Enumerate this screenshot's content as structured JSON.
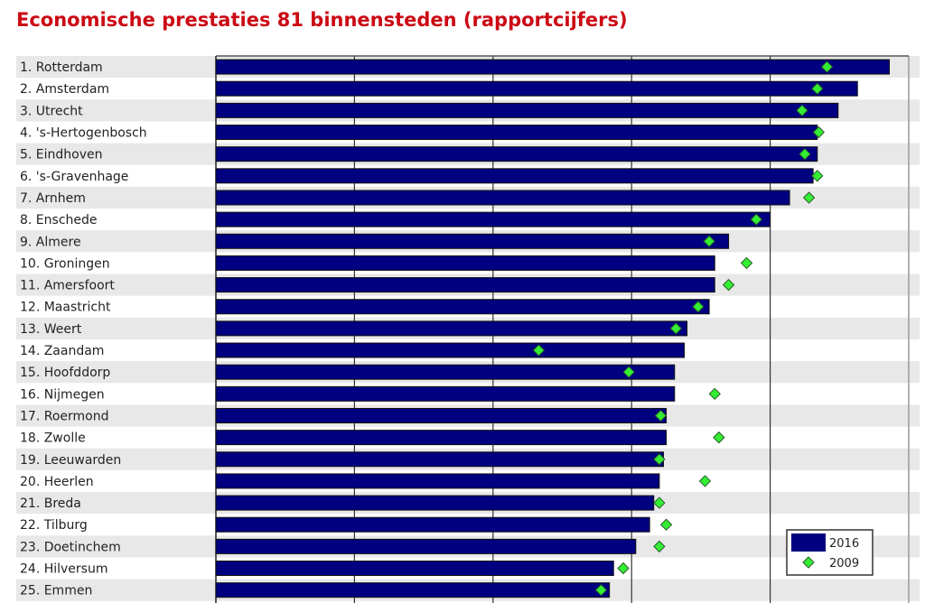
{
  "chart_data": {
    "type": "bar",
    "orientation": "horizontal",
    "title": "Economische prestaties 81 binnensteden (rapportcijfers)",
    "categories": [
      "1. Rotterdam",
      "2. Amsterdam",
      "3. Utrecht",
      "4. 's-Hertogenbosch",
      "5. Eindhoven",
      "6. 's-Gravenhage",
      "7. Arnhem",
      "8. Enschede",
      "9. Almere",
      "10. Groningen",
      "11. Amersfoort",
      "12. Maastricht",
      "13. Weert",
      "14. Zaandam",
      "15. Hoofddorp",
      "16. Nijmegen",
      "17. Roermond",
      "18. Zwolle",
      "19. Leeuwarden",
      "20. Heerlen",
      "21. Breda",
      "22. Tilburg",
      "23. Doetinchem",
      "24. Hilversum",
      "25. Emmen"
    ],
    "series": [
      {
        "name": "2016",
        "mark": "bar",
        "color": "#000080",
        "values": [
          4.86,
          4.63,
          4.49,
          4.34,
          4.34,
          4.31,
          4.14,
          4.0,
          3.7,
          3.6,
          3.6,
          3.56,
          3.4,
          3.38,
          3.31,
          3.31,
          3.25,
          3.25,
          3.23,
          3.2,
          3.16,
          3.13,
          3.03,
          2.87,
          2.84
        ]
      },
      {
        "name": "2009",
        "mark": "diamond",
        "color": "#33ee33",
        "values": [
          4.41,
          4.34,
          4.23,
          4.35,
          4.25,
          4.34,
          4.28,
          3.9,
          3.56,
          3.83,
          3.7,
          3.48,
          3.32,
          2.33,
          2.98,
          3.6,
          3.21,
          3.63,
          3.2,
          3.53,
          3.2,
          3.25,
          3.2,
          2.94,
          2.78
        ]
      }
    ],
    "xlim": [
      0,
      5
    ],
    "grid": "vertical",
    "legend": "bottom-right",
    "xlabel": "",
    "ylabel": ""
  }
}
